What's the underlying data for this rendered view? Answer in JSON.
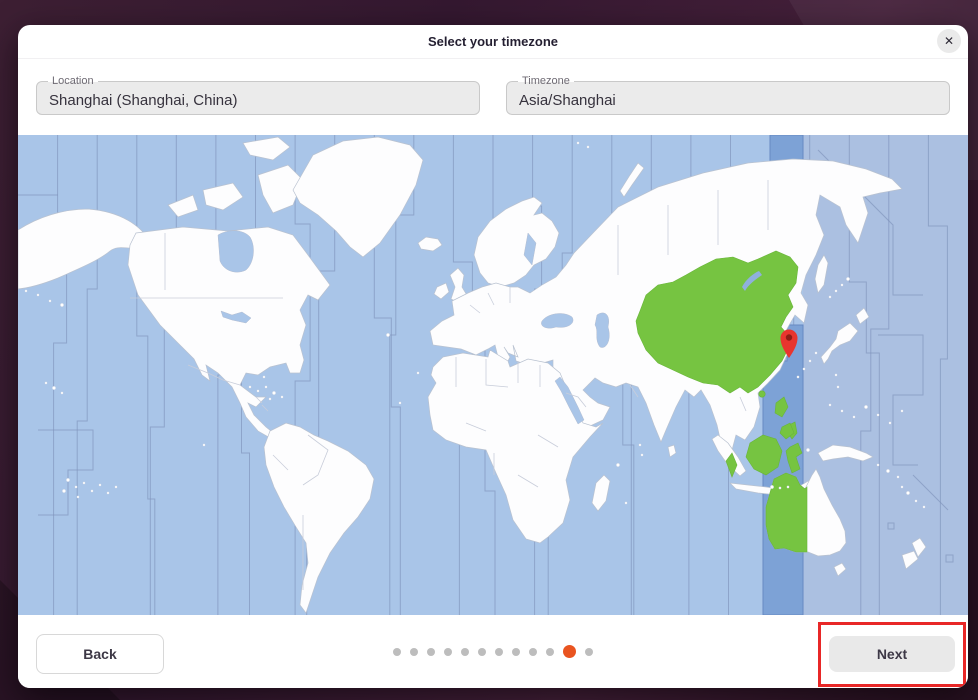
{
  "window": {
    "title": "Select your timezone",
    "close_glyph": "✕"
  },
  "fields": {
    "location": {
      "label": "Location",
      "value": "Shanghai (Shanghai, China)"
    },
    "timezone": {
      "label": "Timezone",
      "value": "Asia/Shanghai"
    }
  },
  "footer": {
    "back_label": "Back",
    "next_label": "Next",
    "dots": {
      "count": 12,
      "active_index": 10
    }
  },
  "colors": {
    "accent_orange": "#e95420",
    "highlight_green": "#76c441",
    "band_blue": "#7da2d6",
    "ocean_blue": "#a9c5e8",
    "tz_line": "#7e92ba",
    "land_white": "#fdfdfe",
    "pin_red": "#e8352e",
    "pin_hole_dark": "#8f1d16",
    "annotation_red": "#e82727"
  }
}
